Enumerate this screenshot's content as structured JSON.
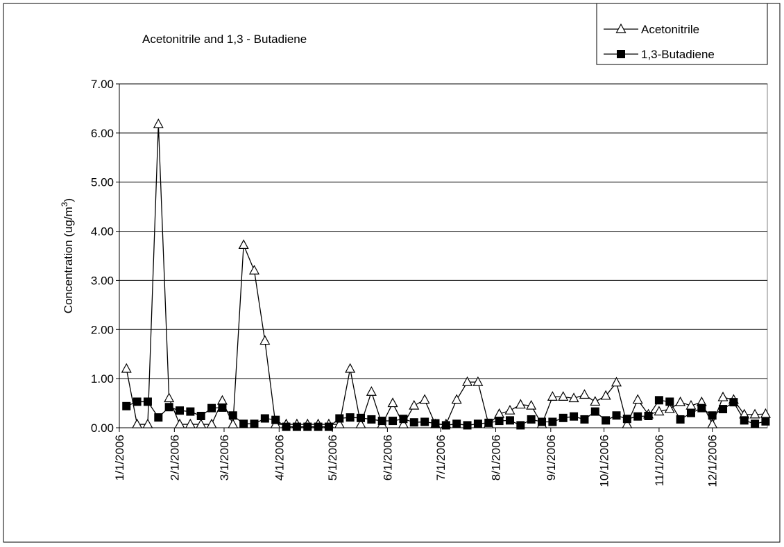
{
  "chart_data": {
    "type": "line",
    "title": "Acetonitrile and 1,3 - Butadiene",
    "ylabel": [
      "Concentration (ug/m",
      "3",
      ")"
    ],
    "xlim": [
      "2006-01-01",
      "2007-01-01"
    ],
    "xticks": [
      {
        "value": "2006-01-01",
        "label": "1/1/2006"
      },
      {
        "value": "2006-02-01",
        "label": "2/1/2006"
      },
      {
        "value": "2006-03-01",
        "label": "3/1/2006"
      },
      {
        "value": "2006-04-01",
        "label": "4/1/2006"
      },
      {
        "value": "2006-05-01",
        "label": "5/1/2006"
      },
      {
        "value": "2006-06-01",
        "label": "6/1/2006"
      },
      {
        "value": "2006-07-01",
        "label": "7/1/2006"
      },
      {
        "value": "2006-08-01",
        "label": "8/1/2006"
      },
      {
        "value": "2006-09-01",
        "label": "9/1/2006"
      },
      {
        "value": "2006-10-01",
        "label": "10/1/2006"
      },
      {
        "value": "2006-11-01",
        "label": "11/1/2006"
      },
      {
        "value": "2006-12-01",
        "label": "12/1/2006"
      }
    ],
    "ylim": [
      0,
      7
    ],
    "yticks": [
      {
        "value": 0,
        "label": "0.00"
      },
      {
        "value": 1,
        "label": "1.00"
      },
      {
        "value": 2,
        "label": "2.00"
      },
      {
        "value": 3,
        "label": "3.00"
      },
      {
        "value": 4,
        "label": "4.00"
      },
      {
        "value": 5,
        "label": "5.00"
      },
      {
        "value": 6,
        "label": "6.00"
      },
      {
        "value": 7,
        "label": "7.00"
      }
    ],
    "grid": true,
    "legend": "top-right",
    "x": [
      "2006-01-05",
      "2006-01-11",
      "2006-01-17",
      "2006-01-23",
      "2006-01-29",
      "2006-02-04",
      "2006-02-10",
      "2006-02-16",
      "2006-02-22",
      "2006-02-28",
      "2006-03-06",
      "2006-03-12",
      "2006-03-18",
      "2006-03-24",
      "2006-03-30",
      "2006-04-05",
      "2006-04-11",
      "2006-04-17",
      "2006-04-23",
      "2006-04-29",
      "2006-05-05",
      "2006-05-11",
      "2006-05-17",
      "2006-05-23",
      "2006-05-29",
      "2006-06-04",
      "2006-06-10",
      "2006-06-16",
      "2006-06-22",
      "2006-06-28",
      "2006-07-04",
      "2006-07-10",
      "2006-07-16",
      "2006-07-22",
      "2006-07-28",
      "2006-08-03",
      "2006-08-09",
      "2006-08-15",
      "2006-08-21",
      "2006-08-27",
      "2006-09-02",
      "2006-09-08",
      "2006-09-14",
      "2006-09-20",
      "2006-09-26",
      "2006-10-02",
      "2006-10-08",
      "2006-10-14",
      "2006-10-20",
      "2006-10-26",
      "2006-11-01",
      "2006-11-07",
      "2006-11-13",
      "2006-11-19",
      "2006-11-25",
      "2006-12-01",
      "2006-12-07",
      "2006-12-13",
      "2006-12-19",
      "2006-12-25",
      "2006-12-31"
    ],
    "series": [
      {
        "name": "Acetonitrile",
        "color": "#000000",
        "marker": "triangle",
        "values": [
          1.2,
          0.07,
          0.07,
          6.18,
          0.6,
          0.07,
          0.07,
          0.07,
          0.07,
          0.55,
          0.07,
          3.72,
          3.2,
          1.77,
          0.07,
          0.07,
          0.07,
          0.07,
          0.07,
          0.07,
          0.07,
          1.2,
          0.07,
          0.73,
          0.07,
          0.5,
          0.07,
          0.45,
          0.57,
          0.07,
          0.07,
          0.57,
          0.93,
          0.93,
          0.07,
          0.28,
          0.35,
          0.47,
          0.45,
          0.07,
          0.63,
          0.63,
          0.6,
          0.67,
          0.53,
          0.65,
          0.92,
          0.07,
          0.57,
          0.27,
          0.33,
          0.38,
          0.52,
          0.45,
          0.52,
          0.07,
          0.62,
          0.57,
          0.27,
          0.27,
          0.28
        ]
      },
      {
        "name": "1,3-Butadiene",
        "color": "#000000",
        "marker": "square",
        "values": [
          0.44,
          0.53,
          0.53,
          0.21,
          0.42,
          0.35,
          0.33,
          0.24,
          0.4,
          0.41,
          0.25,
          0.08,
          0.08,
          0.19,
          0.16,
          0.02,
          0.02,
          0.02,
          0.02,
          0.02,
          0.19,
          0.21,
          0.2,
          0.17,
          0.14,
          0.14,
          0.18,
          0.11,
          0.12,
          0.09,
          0.05,
          0.08,
          0.05,
          0.08,
          0.1,
          0.14,
          0.15,
          0.05,
          0.17,
          0.12,
          0.12,
          0.2,
          0.23,
          0.17,
          0.33,
          0.15,
          0.25,
          0.18,
          0.23,
          0.24,
          0.56,
          0.53,
          0.17,
          0.3,
          0.4,
          0.25,
          0.38,
          0.52,
          0.15,
          0.08,
          0.13
        ]
      }
    ]
  }
}
